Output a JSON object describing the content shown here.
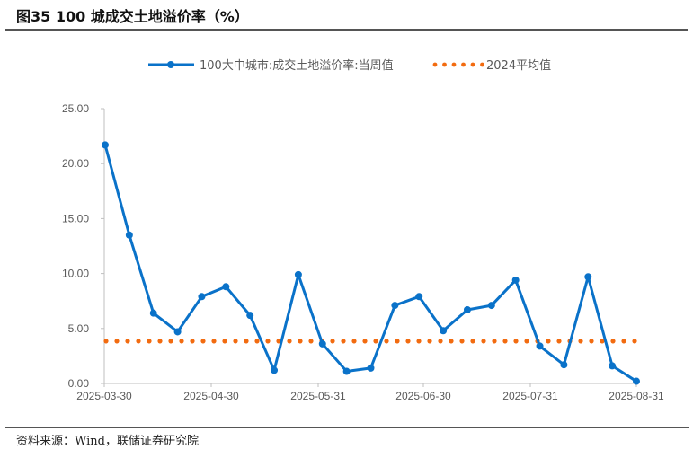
{
  "title": "图35 100 城成交土地溢价率（%）",
  "source": "资料来源：Wind，联储证券研究院",
  "colors": {
    "series": "#0a72c9",
    "average": "#f26b10",
    "axis": "#bfbfbf",
    "text": "#595959"
  },
  "legend": {
    "series_label": "100大中城市:成交土地溢价率:当周值",
    "average_label": "2024平均值"
  },
  "chart_data": {
    "type": "line",
    "title": "100城成交土地溢价率（%）",
    "xlabel": "",
    "ylabel": "",
    "ylim": [
      0,
      25
    ],
    "yticks": [
      "0.00",
      "5.00",
      "10.00",
      "15.00",
      "20.00",
      "25.00"
    ],
    "xticks": [
      "2025-03-30",
      "2025-04-30",
      "2025-05-31",
      "2025-06-30",
      "2025-07-31",
      "2025-08-31"
    ],
    "grid": false,
    "legend_position": "top",
    "x": [
      "2025-03-30",
      "2025-04-06",
      "2025-04-13",
      "2025-04-20",
      "2025-04-27",
      "2025-05-04",
      "2025-05-11",
      "2025-05-18",
      "2025-05-25",
      "2025-06-01",
      "2025-06-08",
      "2025-06-15",
      "2025-06-22",
      "2025-06-29",
      "2025-07-06",
      "2025-07-13",
      "2025-07-20",
      "2025-07-27",
      "2025-08-03",
      "2025-08-10",
      "2025-08-17",
      "2025-08-24",
      "2025-08-31"
    ],
    "series": [
      {
        "name": "100大中城市:成交土地溢价率:当周值",
        "style": "solid line with markers",
        "values": [
          21.7,
          13.5,
          6.4,
          4.7,
          7.9,
          8.8,
          6.2,
          1.2,
          9.9,
          3.6,
          1.1,
          1.4,
          7.1,
          7.9,
          4.8,
          6.7,
          7.1,
          9.4,
          3.4,
          1.7,
          9.7,
          1.6,
          0.2
        ]
      },
      {
        "name": "2024平均值",
        "style": "dotted",
        "values": [
          3.85,
          3.85,
          3.85,
          3.85,
          3.85,
          3.85,
          3.85,
          3.85,
          3.85,
          3.85,
          3.85,
          3.85,
          3.85,
          3.85,
          3.85,
          3.85,
          3.85,
          3.85,
          3.85,
          3.85,
          3.85,
          3.85,
          3.85
        ]
      }
    ]
  }
}
